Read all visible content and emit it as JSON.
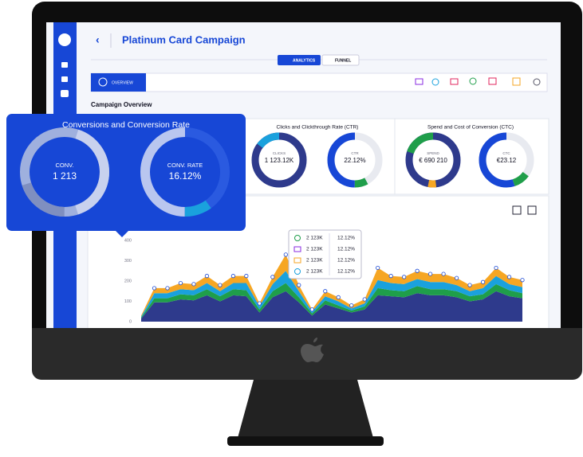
{
  "header": {
    "title": "Platinum Card Campaign"
  },
  "tabs": [
    "ANALYTICS",
    "FUNNEL"
  ],
  "toolbar": {
    "overview": "OVERVIEW"
  },
  "section_title": "Campaign Overview",
  "cards": [
    {
      "title": "Conversions and Conversion Rate",
      "metrics": [
        {
          "label": "CONV.",
          "value": "1 213"
        },
        {
          "label": "CONV. RATE",
          "value": "16.12%"
        }
      ]
    },
    {
      "title": "Clicks and Clickthrough Rate (CTR)",
      "metrics": [
        {
          "label": "CLICKS",
          "value": "1 123.12K"
        },
        {
          "label": "CTR",
          "value": "22.12%"
        }
      ]
    },
    {
      "title": "Spend and Cost of Conversion (CTC)",
      "metrics": [
        {
          "label": "SPEND",
          "value": "€ 690 210"
        },
        {
          "label": "CTC",
          "value": "€23.12"
        }
      ]
    }
  ],
  "chart_data": {
    "type": "area",
    "stacked": true,
    "ylim": [
      0,
      400
    ],
    "yticks": [
      0,
      100,
      200,
      300,
      400
    ],
    "series": [
      {
        "color": "#2e3a8c",
        "values": [
          15,
          95,
          95,
          110,
          105,
          130,
          100,
          130,
          125,
          45,
          120,
          150,
          95,
          30,
          85,
          65,
          45,
          60,
          130,
          125,
          120,
          140,
          130,
          130,
          120,
          100,
          110,
          150,
          125,
          115
        ]
      },
      {
        "color": "#1f9e4a",
        "values": [
          5,
          20,
          20,
          25,
          25,
          30,
          25,
          30,
          30,
          15,
          30,
          40,
          25,
          10,
          20,
          15,
          10,
          15,
          35,
          30,
          30,
          35,
          30,
          30,
          30,
          25,
          25,
          35,
          30,
          25
        ]
      },
      {
        "color": "#1aa1dd",
        "values": [
          5,
          25,
          25,
          25,
          25,
          30,
          25,
          30,
          35,
          15,
          35,
          60,
          30,
          10,
          20,
          20,
          10,
          15,
          40,
          35,
          35,
          35,
          35,
          35,
          30,
          25,
          30,
          40,
          30,
          30
        ]
      },
      {
        "color": "#f6a623",
        "values": [
          5,
          25,
          25,
          30,
          30,
          35,
          30,
          35,
          35,
          15,
          35,
          80,
          30,
          10,
          25,
          20,
          15,
          20,
          60,
          35,
          35,
          40,
          40,
          40,
          35,
          30,
          30,
          40,
          35,
          35
        ]
      }
    ]
  },
  "tooltip": {
    "rows": [
      {
        "value": "2 123K",
        "rate": "12.12%"
      },
      {
        "value": "2 123K",
        "rate": "12.12%"
      },
      {
        "value": "2 123K",
        "rate": "12.12%"
      },
      {
        "value": "2 123K",
        "rate": "12.12%"
      }
    ]
  }
}
